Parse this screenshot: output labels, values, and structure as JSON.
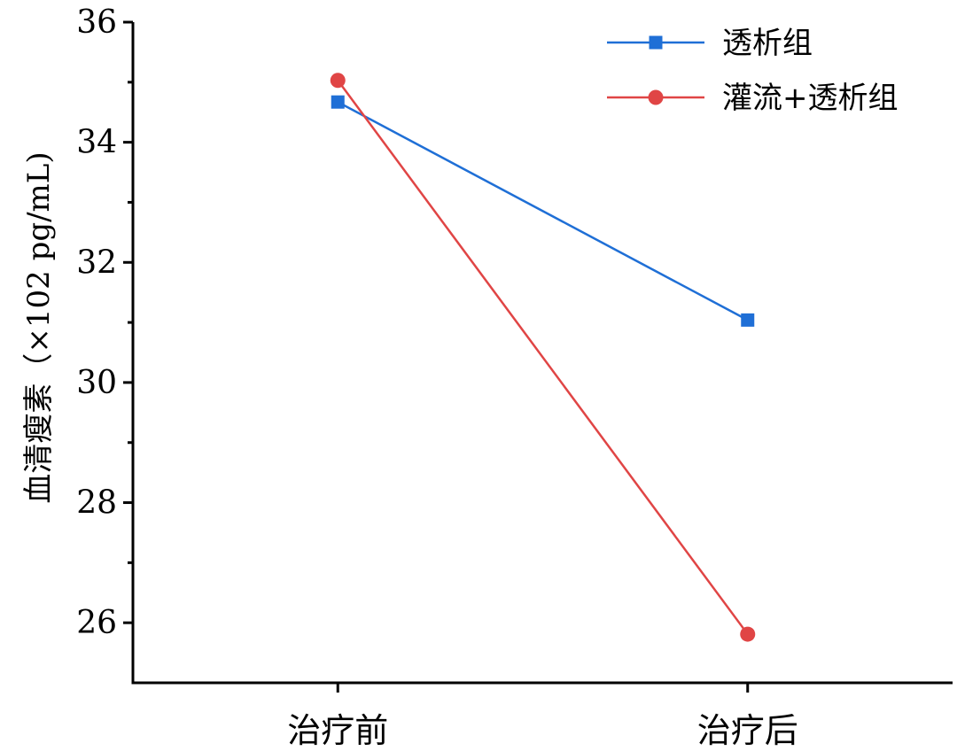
{
  "chart_data": {
    "type": "line",
    "title": "",
    "xlabel": "",
    "ylabel": "血清瘦素（×102 pg/mL)",
    "categories": [
      "治疗前",
      "治疗后"
    ],
    "ylim": [
      25,
      36
    ],
    "yticks": [
      26,
      28,
      30,
      32,
      34,
      36
    ],
    "yminor_ticks": [
      25,
      27,
      29,
      31,
      33,
      35
    ],
    "grid": false,
    "legend_position": "top-right",
    "series": [
      {
        "name": "透析组",
        "values": [
          34.67,
          31.04
        ],
        "color": "#1f6fd6",
        "marker": "square"
      },
      {
        "name": "灌流+透析组",
        "values": [
          35.03,
          25.81
        ],
        "color": "#e04545",
        "marker": "circle"
      }
    ]
  }
}
